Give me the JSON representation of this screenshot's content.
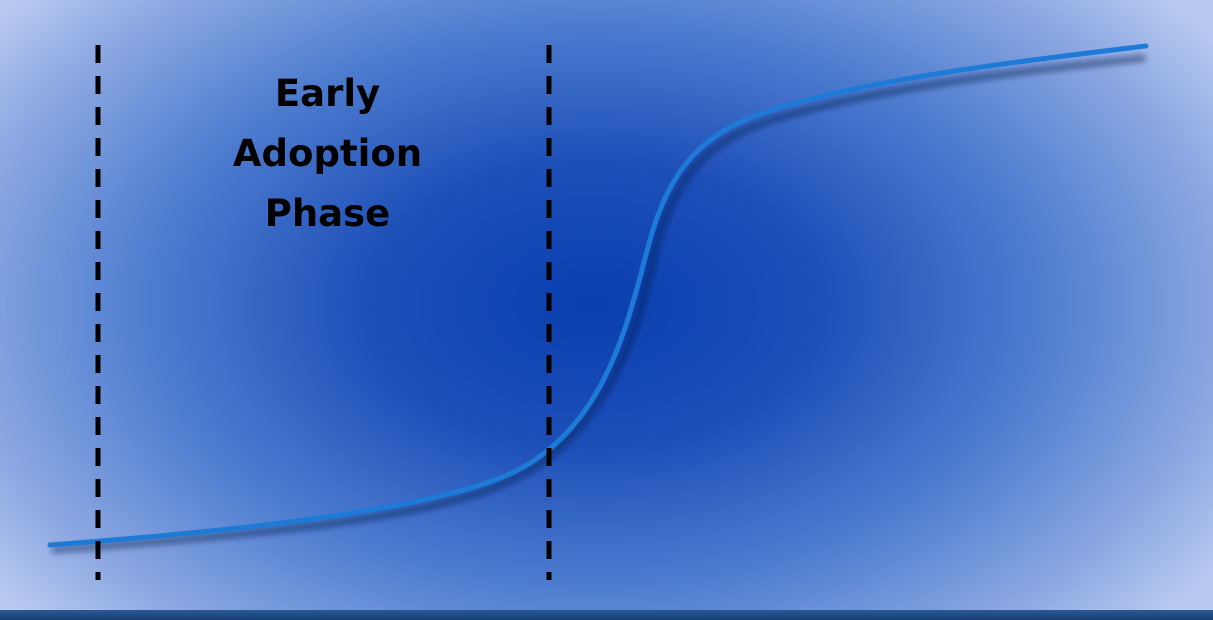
{
  "phase_label": {
    "line1": "Early",
    "line2": "Adoption",
    "line3": "Phase"
  },
  "colors": {
    "curve": "#1d7ad6",
    "divider": "#000000",
    "text": "#000000"
  }
}
